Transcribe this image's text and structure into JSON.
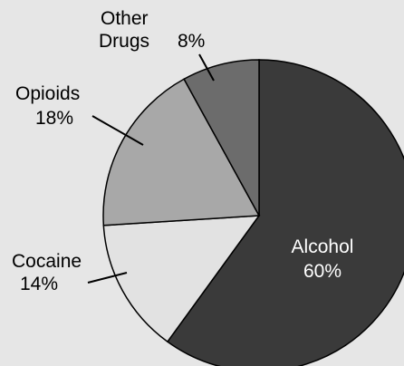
{
  "chart_data": {
    "type": "pie",
    "title": "",
    "start_angle_deg": 0,
    "direction": "clockwise",
    "legend": "none",
    "slices": [
      {
        "label": "Alcohol",
        "value": 60,
        "value_label": "60%",
        "color": "#3a3a3a",
        "label_position": "inside"
      },
      {
        "label": "Cocaine",
        "value": 14,
        "value_label": "14%",
        "color": "#e2e2e2",
        "label_position": "outside-left"
      },
      {
        "label": "Opioids",
        "value": 18,
        "value_label": "18%",
        "color": "#a8a8a8",
        "label_position": "outside-left"
      },
      {
        "label_line1": "Other",
        "label_line2": "Drugs",
        "value": 8,
        "value_label": "8%",
        "color": "#6c6c6c",
        "label_position": "outside-top"
      }
    ],
    "border_color": "#000000",
    "background": "#e6e6e6"
  }
}
